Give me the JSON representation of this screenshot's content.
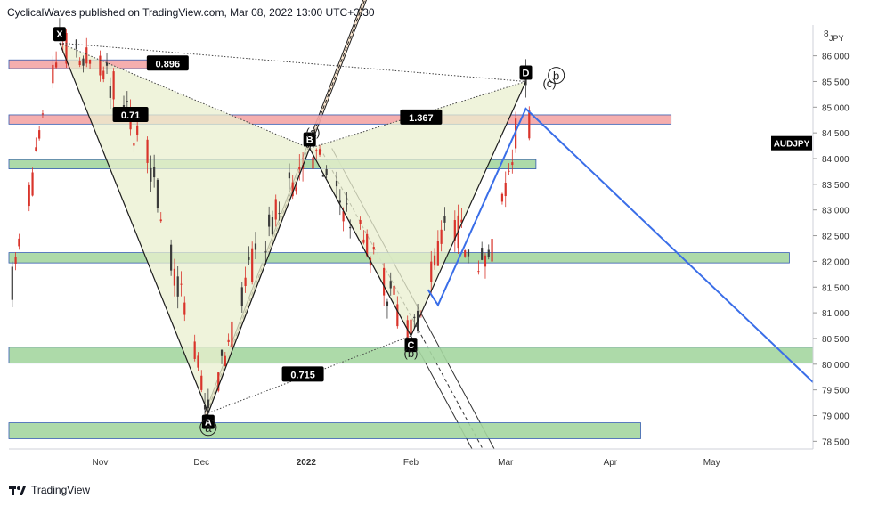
{
  "header": {
    "text": "CyclicalWaves published on TradingView.com, Mar 08, 2022 13:00 UTC+3:30"
  },
  "footer": {
    "brand": "TradingView",
    "logo_icon": "tradingview-logo-icon"
  },
  "chart_data": {
    "type": "candlestick",
    "symbol_label": "AUDJPY",
    "currency_label": "JPY",
    "y_axis": {
      "ticks": [
        "86.000",
        "85.500",
        "85.000",
        "84.500",
        "84.000",
        "83.500",
        "83.000",
        "82.500",
        "82.000",
        "81.500",
        "81.000",
        "80.500",
        "80.000",
        "79.500",
        "79.000",
        "78.500"
      ],
      "ylim": [
        78.35,
        86.6
      ],
      "top_partial_label": "8"
    },
    "x_axis": {
      "ticks": [
        "Nov",
        "Dec",
        "2022",
        "Feb",
        "Mar",
        "Apr",
        "May"
      ],
      "tick_dates": [
        "2021-11-01",
        "2021-12-01",
        "2022-01-01",
        "2022-02-01",
        "2022-03-01",
        "2022-04-01",
        "2022-05-01"
      ],
      "xlim": [
        "2021-10-05",
        "2022-05-31"
      ]
    },
    "pattern_points": [
      {
        "label": "X",
        "date": "2021-10-20",
        "price": 86.25
      },
      {
        "label": "A",
        "date": "2021-12-03",
        "price": 79.05
      },
      {
        "label": "B",
        "date": "2022-01-02",
        "price": 84.2
      },
      {
        "label": "C",
        "date": "2022-02-01",
        "price": 80.55
      },
      {
        "label": "D",
        "date": "2022-03-07",
        "price": 85.5
      }
    ],
    "ratios": [
      {
        "label": "0.896",
        "date": "2021-11-21",
        "price": 85.85
      },
      {
        "label": "0.71",
        "date": "2021-11-10",
        "price": 84.85
      },
      {
        "label": "1.367",
        "date": "2022-02-04",
        "price": 84.8
      },
      {
        "label": "0.715",
        "date": "2021-12-31",
        "price": 79.8
      }
    ],
    "wave_labels": [
      {
        "label": "(a)",
        "date": "2022-01-03",
        "price": 84.45
      },
      {
        "label": "(b)",
        "date": "2022-02-01",
        "price": 80.15
      },
      {
        "label": "(c)",
        "date": "2022-03-14",
        "price": 85.4
      },
      {
        "label": "b",
        "date": "2022-03-16",
        "price": 85.55
      },
      {
        "label": "a",
        "date": "2021-12-03",
        "price": 78.7
      }
    ],
    "zones": [
      {
        "kind": "resistance",
        "color": "#f4a6a6",
        "date_from": "2021-10-05",
        "date_to": "2021-11-26",
        "price_low": 85.75,
        "price_high": 85.92
      },
      {
        "kind": "resistance",
        "color": "#f4a6a6",
        "date_from": "2021-10-05",
        "date_to": "2022-04-19",
        "price_low": 84.67,
        "price_high": 84.85
      },
      {
        "kind": "support",
        "color": "#a5d6a0",
        "date_from": "2021-10-05",
        "date_to": "2022-03-10",
        "price_low": 83.8,
        "price_high": 83.98
      },
      {
        "kind": "support",
        "color": "#a5d6a0",
        "date_from": "2021-10-05",
        "date_to": "2022-05-24",
        "price_low": 81.97,
        "price_high": 82.17
      },
      {
        "kind": "support",
        "color": "#a5d6a0",
        "date_from": "2021-10-05",
        "date_to": "2022-05-31",
        "price_low": 80.02,
        "price_high": 80.33
      },
      {
        "kind": "support",
        "color": "#a5d6a0",
        "date_from": "2021-10-05",
        "date_to": "2022-04-10",
        "price_low": 78.55,
        "price_high": 78.86
      }
    ],
    "projection_path": [
      {
        "date": "2022-02-06",
        "price": 81.45
      },
      {
        "date": "2022-02-09",
        "price": 81.15
      },
      {
        "date": "2022-03-07",
        "price": 84.97
      },
      {
        "date": "2022-05-31",
        "price": 79.65
      }
    ],
    "colors": {
      "bull": "#3b3b3b",
      "bear": "#d9342b",
      "projection": "#3a6ee8",
      "harmonic_fill": "#e9efcf",
      "channel_fill": "#fbe0c3",
      "zone_red": "#f4a6a6",
      "zone_green": "#a5d6a0"
    }
  }
}
